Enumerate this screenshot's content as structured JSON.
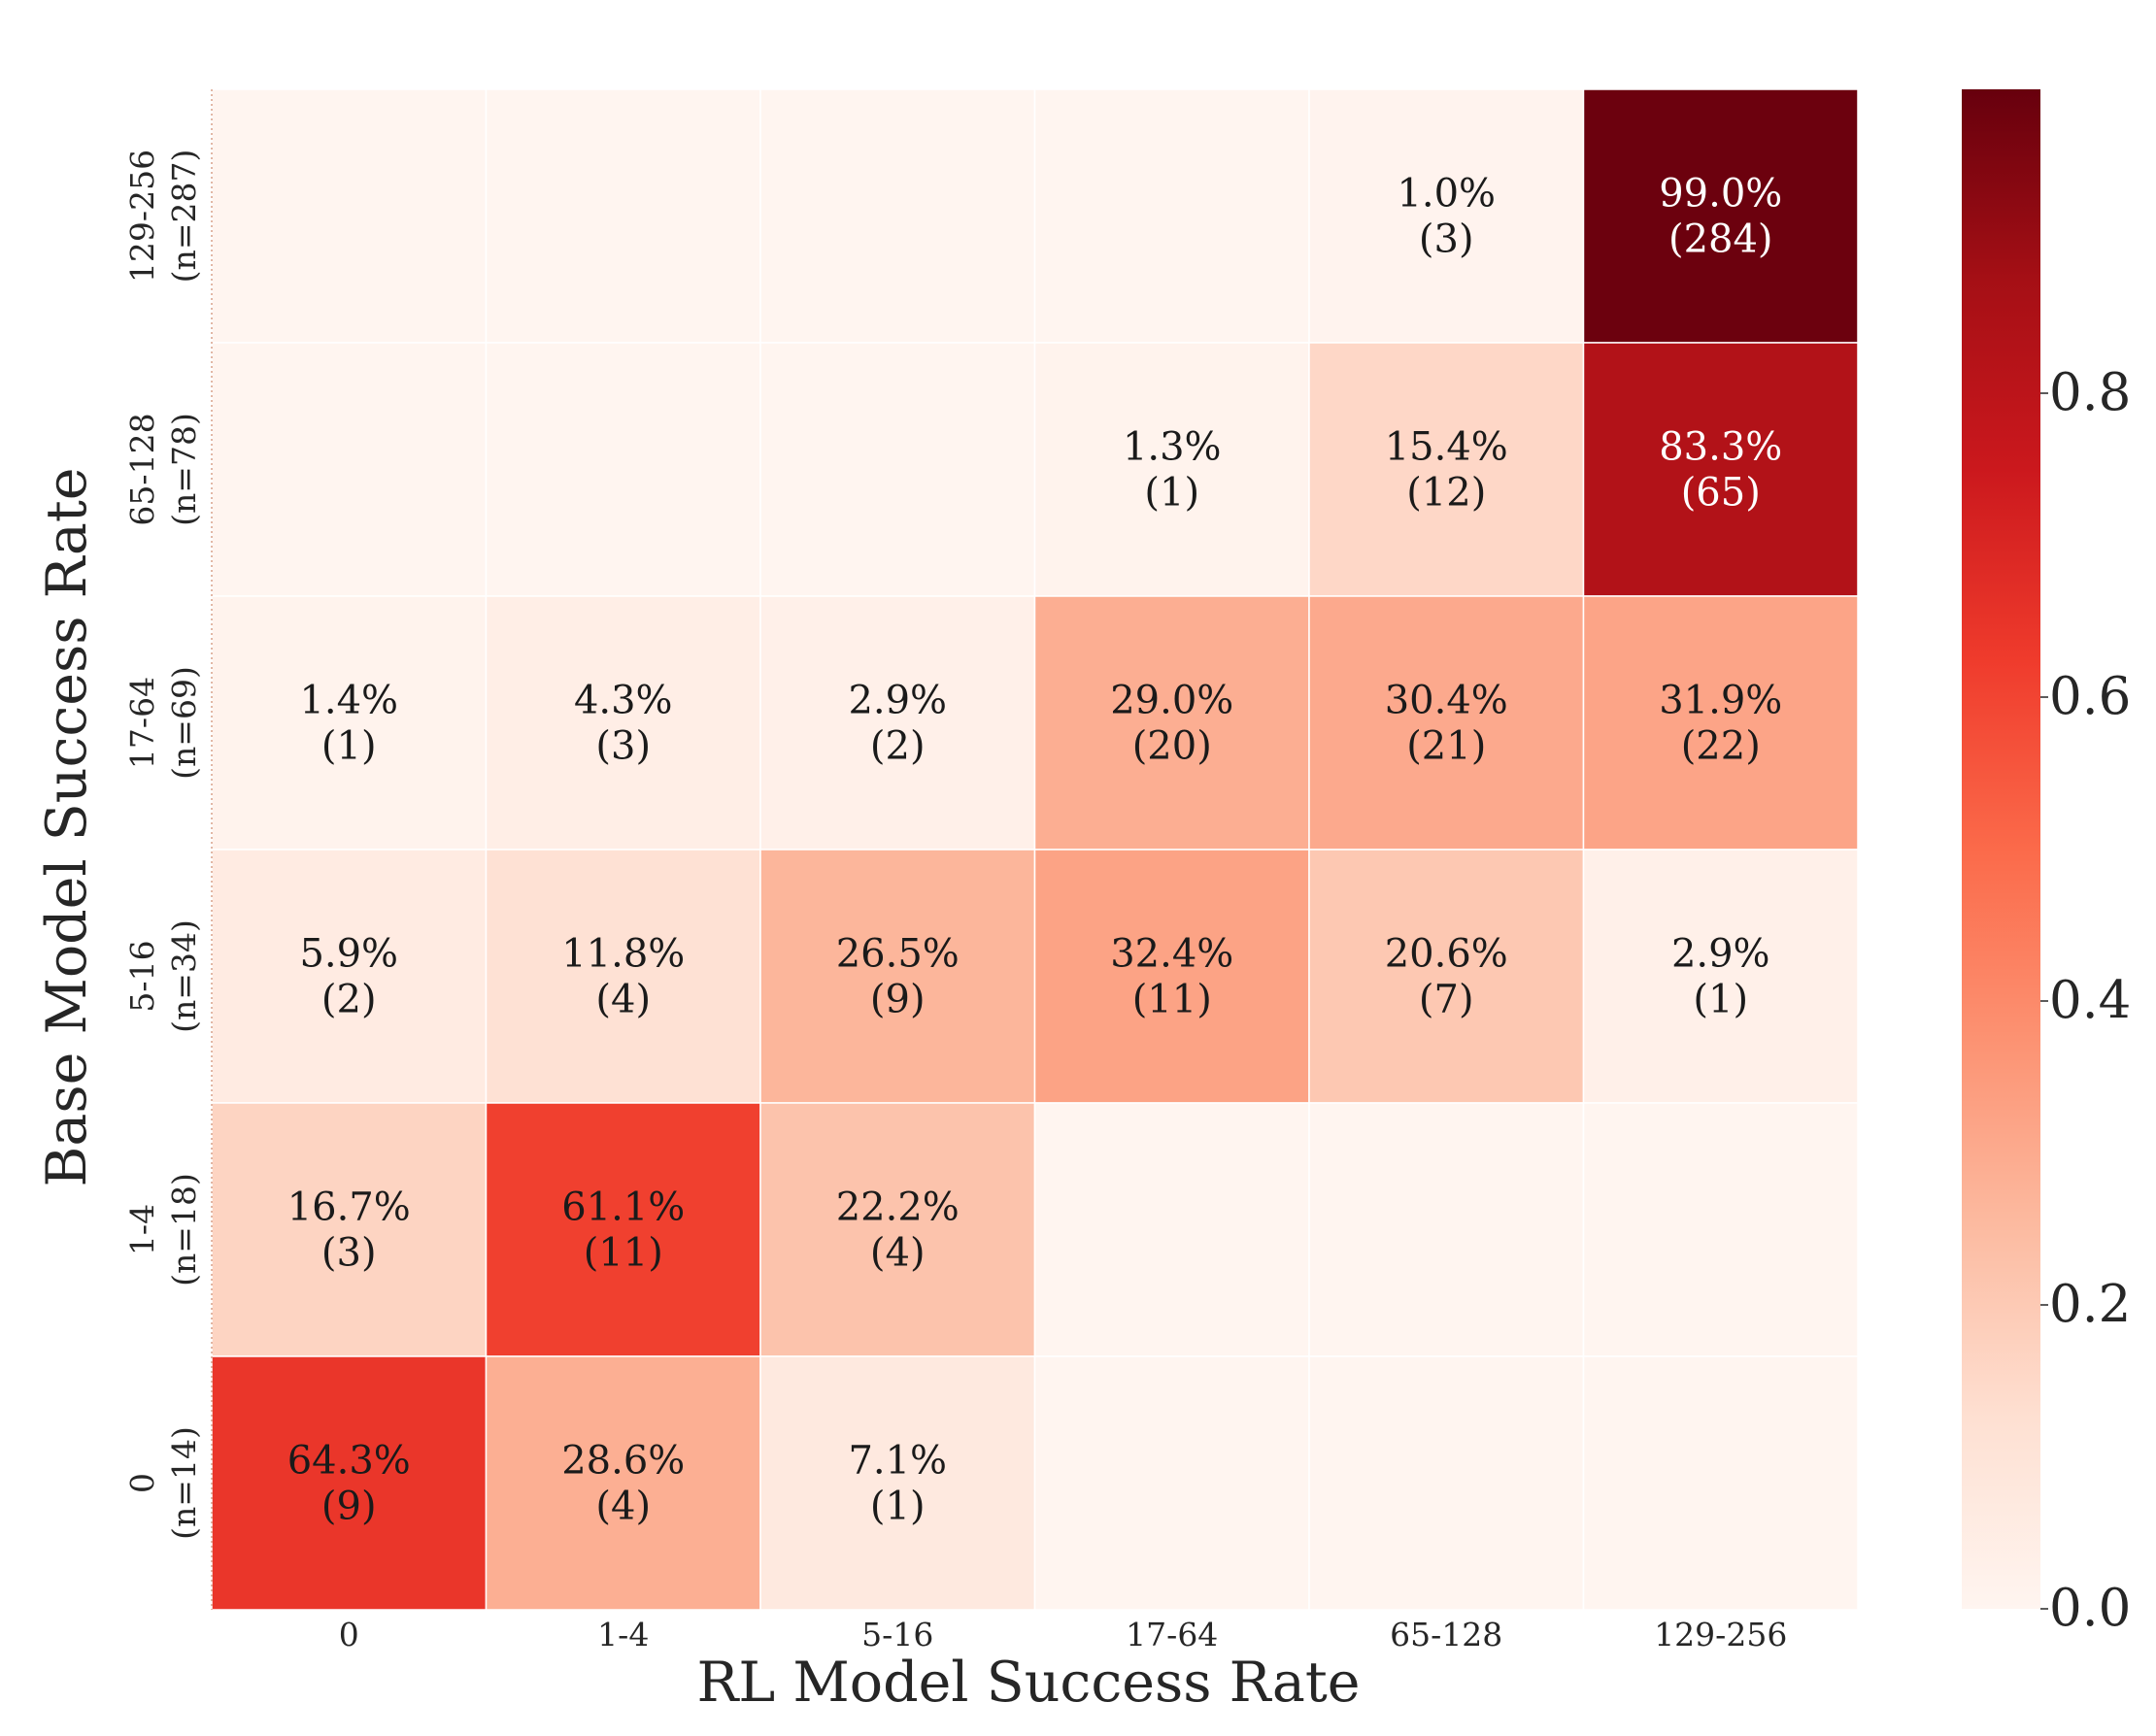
{
  "chart_data": {
    "type": "heatmap",
    "title": "",
    "xlabel": "RL Model Success Rate",
    "ylabel": "Base Model Success Rate",
    "x_categories": [
      "0",
      "1-4",
      "5-16",
      "17-64",
      "65-128",
      "129-256"
    ],
    "y_categories": [
      {
        "label": "129-256",
        "n": "(n=287)"
      },
      {
        "label": "65-128",
        "n": "(n=78)"
      },
      {
        "label": "17-64",
        "n": "(n=69)"
      },
      {
        "label": "5-16",
        "n": "(n=34)"
      },
      {
        "label": "1-4",
        "n": "(n=18)"
      },
      {
        "label": "0",
        "n": "(n=14)"
      }
    ],
    "cells": [
      [
        null,
        null,
        null,
        null,
        {
          "value": 0.01,
          "pct": "1.0%",
          "count": "(3)"
        },
        {
          "value": 0.99,
          "pct": "99.0%",
          "count": "(284)"
        }
      ],
      [
        null,
        null,
        null,
        {
          "value": 0.013,
          "pct": "1.3%",
          "count": "(1)"
        },
        {
          "value": 0.154,
          "pct": "15.4%",
          "count": "(12)"
        },
        {
          "value": 0.833,
          "pct": "83.3%",
          "count": "(65)"
        }
      ],
      [
        {
          "value": 0.014,
          "pct": "1.4%",
          "count": "(1)"
        },
        {
          "value": 0.043,
          "pct": "4.3%",
          "count": "(3)"
        },
        {
          "value": 0.029,
          "pct": "2.9%",
          "count": "(2)"
        },
        {
          "value": 0.29,
          "pct": "29.0%",
          "count": "(20)"
        },
        {
          "value": 0.304,
          "pct": "30.4%",
          "count": "(21)"
        },
        {
          "value": 0.319,
          "pct": "31.9%",
          "count": "(22)"
        }
      ],
      [
        {
          "value": 0.059,
          "pct": "5.9%",
          "count": "(2)"
        },
        {
          "value": 0.118,
          "pct": "11.8%",
          "count": "(4)"
        },
        {
          "value": 0.265,
          "pct": "26.5%",
          "count": "(9)"
        },
        {
          "value": 0.324,
          "pct": "32.4%",
          "count": "(11)"
        },
        {
          "value": 0.206,
          "pct": "20.6%",
          "count": "(7)"
        },
        {
          "value": 0.029,
          "pct": "2.9%",
          "count": "(1)"
        }
      ],
      [
        {
          "value": 0.167,
          "pct": "16.7%",
          "count": "(3)"
        },
        {
          "value": 0.611,
          "pct": "61.1%",
          "count": "(11)"
        },
        {
          "value": 0.222,
          "pct": "22.2%",
          "count": "(4)"
        },
        null,
        null,
        null
      ],
      [
        {
          "value": 0.643,
          "pct": "64.3%",
          "count": "(9)"
        },
        {
          "value": 0.286,
          "pct": "28.6%",
          "count": "(4)"
        },
        {
          "value": 0.071,
          "pct": "7.1%",
          "count": "(1)"
        },
        null,
        null,
        null
      ]
    ],
    "colorbar": {
      "colormap": "Reds",
      "range": [
        0,
        1
      ],
      "ticks": [
        0.0,
        0.2,
        0.4,
        0.6,
        0.8
      ],
      "tick_labels": [
        "0.0",
        "0.2",
        "0.4",
        "0.6",
        "0.8"
      ]
    },
    "colors": {
      "reds_stops": [
        "#fff5f0",
        "#fee0d2",
        "#fcbba1",
        "#fc9272",
        "#fb6a4a",
        "#ef3b2c",
        "#cb181d",
        "#a50f15",
        "#67000d"
      ],
      "text_dark": "#1a1a1a",
      "text_light": "#ffffff"
    }
  }
}
